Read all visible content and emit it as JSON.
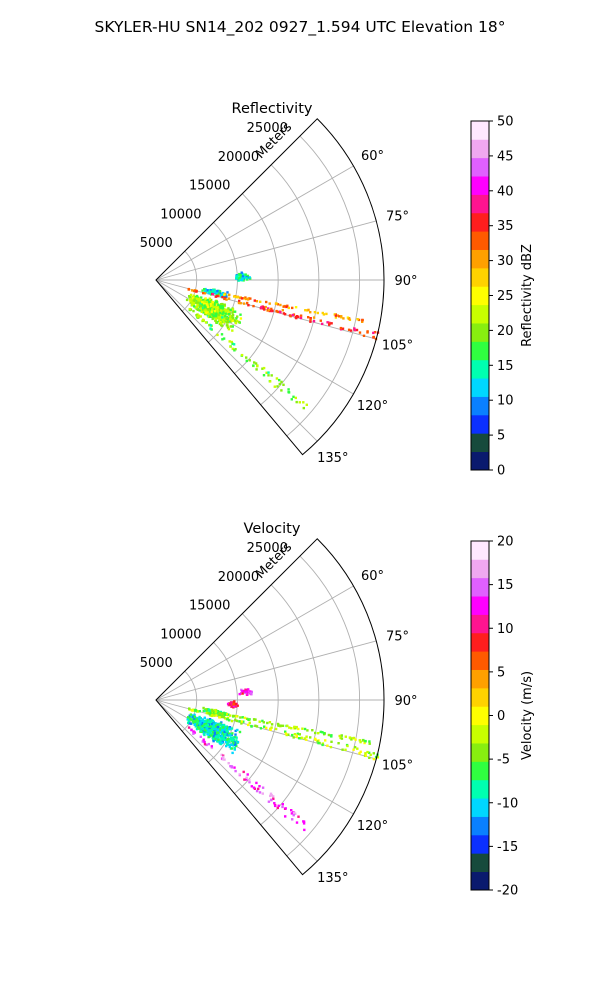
{
  "figure": {
    "title": "SKYLER-HU  SN14_202  0927_1.594 UTC Elevation 18°"
  },
  "chart_data": [
    {
      "type": "polar-wedge",
      "title": "Reflectivity",
      "range_label": "Meters",
      "range_ticks": [
        5000,
        10000,
        15000,
        20000,
        25000
      ],
      "azimuth_ticks": [
        "60°",
        "75°",
        "90°",
        "105°",
        "120°",
        "135°"
      ],
      "azimuth_range_deg": [
        45,
        140
      ],
      "range_max_m": 28000,
      "grid": true,
      "colorbar": {
        "label": "Reflectivity dBZ",
        "range": [
          0,
          50
        ],
        "ticks": [
          0,
          5,
          10,
          15,
          20,
          25,
          30,
          35,
          40,
          45,
          50
        ],
        "colors": [
          "#0a1a6e",
          "#164a3c",
          "#0b30ff",
          "#0a80ff",
          "#00d7ff",
          "#00ffb0",
          "#30ff40",
          "#88ee10",
          "#c8ff00",
          "#ffff00",
          "#ffd200",
          "#ffa000",
          "#ff5a00",
          "#ff1e1e",
          "#ff1490",
          "#ff00ff",
          "#e060ff",
          "#f0a8f0",
          "#ffe8ff"
        ]
      },
      "echoes": [
        {
          "feature": "clutter-near-90",
          "az_deg": [
            84,
            91
          ],
          "range_m": [
            9500,
            11500
          ],
          "value": 13
        },
        {
          "feature": "patch-near-100",
          "az_deg": [
            98,
            104
          ],
          "range_m": [
            5500,
            9000
          ],
          "value": 14
        },
        {
          "feature": "main-cell",
          "az_deg": [
            108,
            126
          ],
          "range_m": [
            4000,
            11500
          ],
          "value": 20
        },
        {
          "feature": "radial-streak-106",
          "az_deg": [
            103,
            105
          ],
          "range_m": [
            4000,
            28000
          ],
          "value": 34
        },
        {
          "feature": "radial-streak-101",
          "az_deg": [
            100.5,
            101.5
          ],
          "range_m": [
            8000,
            27000
          ],
          "value": 30
        },
        {
          "feature": "radial-streak-131",
          "az_deg": [
            129,
            132
          ],
          "range_m": [
            5000,
            24000
          ],
          "value": 19
        }
      ]
    },
    {
      "type": "polar-wedge",
      "title": "Velocity",
      "range_label": "Meters",
      "range_ticks": [
        5000,
        10000,
        15000,
        20000,
        25000
      ],
      "azimuth_ticks": [
        "60°",
        "75°",
        "90°",
        "105°",
        "120°",
        "135°"
      ],
      "azimuth_range_deg": [
        45,
        140
      ],
      "range_max_m": 28000,
      "grid": true,
      "colorbar": {
        "label": "Velocity (m/s)",
        "range": [
          -20,
          20
        ],
        "ticks": [
          -20,
          -15,
          -10,
          -5,
          0,
          5,
          10,
          15,
          20
        ],
        "colors": [
          "#0a1a6e",
          "#164a3c",
          "#0b30ff",
          "#0a80ff",
          "#00d7ff",
          "#00ffb0",
          "#30ff40",
          "#88ee10",
          "#c8ff00",
          "#ffff00",
          "#ffd200",
          "#ffa000",
          "#ff5a00",
          "#ff1e1e",
          "#ff1490",
          "#ff00ff",
          "#e060ff",
          "#f0a8f0",
          "#ffe8ff"
        ]
      },
      "echoes": [
        {
          "feature": "clutter-near-85",
          "az_deg": [
            82,
            86
          ],
          "range_m": [
            10000,
            12000
          ],
          "value": 12
        },
        {
          "feature": "clutter-near-92",
          "az_deg": [
            90,
            95
          ],
          "range_m": [
            8500,
            10000
          ],
          "value": 10
        },
        {
          "feature": "patch-near-100",
          "az_deg": [
            98,
            104
          ],
          "range_m": [
            5500,
            9000
          ],
          "value": -5
        },
        {
          "feature": "main-cell",
          "az_deg": [
            108,
            126
          ],
          "range_m": [
            4000,
            11500
          ],
          "value": -9
        },
        {
          "feature": "radial-streak-106",
          "az_deg": [
            103,
            105
          ],
          "range_m": [
            4000,
            28000
          ],
          "value": -3
        },
        {
          "feature": "radial-streak-101",
          "az_deg": [
            100.5,
            101.5
          ],
          "range_m": [
            8000,
            27000
          ],
          "value": -4
        },
        {
          "feature": "radial-streak-131",
          "az_deg": [
            129,
            132
          ],
          "range_m": [
            5000,
            24000
          ],
          "value": 14
        }
      ]
    }
  ]
}
